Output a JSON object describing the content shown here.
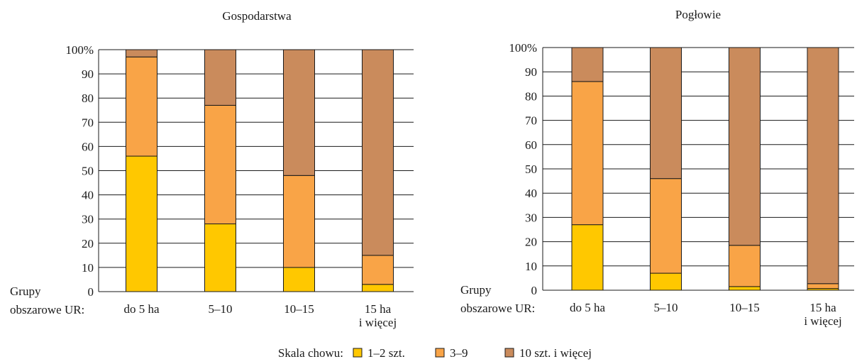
{
  "colors": {
    "series": [
      "#ffc800",
      "#f9a447",
      "#ca8b5c"
    ],
    "stroke": "#1a1a1a"
  },
  "chart_data": [
    {
      "type": "bar",
      "stacked": true,
      "title": "Gospodarstwa",
      "axis_caption": [
        "Grupy",
        "obszarowe UR:"
      ],
      "categories": [
        [
          "do 5 ha"
        ],
        [
          "5–10"
        ],
        [
          "10–15"
        ],
        [
          "15 ha",
          "i więcej"
        ]
      ],
      "yticks": [
        "0",
        "10",
        "20",
        "30",
        "40",
        "50",
        "60",
        "70",
        "80",
        "90",
        "100%"
      ],
      "ylim": [
        0,
        100
      ],
      "grid": true,
      "series": [
        {
          "name": "1–2 szt.",
          "values": [
            56,
            28,
            10,
            3
          ]
        },
        {
          "name": "3–9",
          "values": [
            41,
            49,
            38,
            12
          ]
        },
        {
          "name": "10 szt. i więcej",
          "values": [
            3,
            23,
            52,
            85
          ]
        }
      ]
    },
    {
      "type": "bar",
      "stacked": true,
      "title": "Pogłowie",
      "axis_caption": [
        "Grupy",
        "obszarowe UR:"
      ],
      "categories": [
        [
          "do 5 ha"
        ],
        [
          "5–10"
        ],
        [
          "10–15"
        ],
        [
          "15 ha",
          "i więcej"
        ]
      ],
      "yticks": [
        "0",
        "10",
        "20",
        "30",
        "40",
        "50",
        "60",
        "70",
        "80",
        "90",
        "100%"
      ],
      "ylim": [
        0,
        100
      ],
      "grid": true,
      "series": [
        {
          "name": "1–2 szt.",
          "values": [
            27,
            7,
            1.5,
            0.7
          ]
        },
        {
          "name": "3–9",
          "values": [
            59,
            39,
            17,
            2
          ]
        },
        {
          "name": "10 szt. i więcej",
          "values": [
            14,
            54,
            81.5,
            97.3
          ]
        }
      ]
    }
  ],
  "legend": {
    "label": "Skala chowu:",
    "placement": "bottom",
    "items": [
      "1–2 szt.",
      "3–9",
      "10 szt. i więcej"
    ]
  }
}
